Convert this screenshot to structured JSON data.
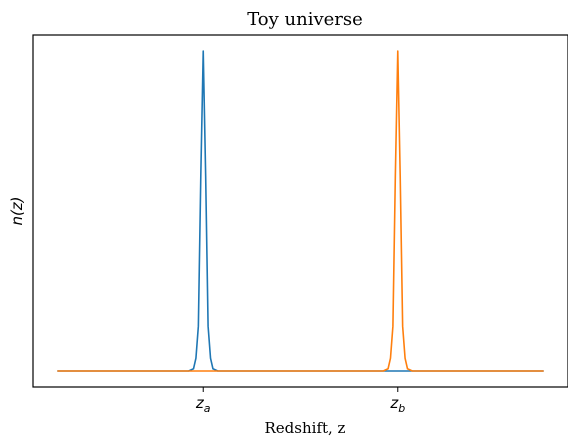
{
  "chart_data": {
    "type": "line",
    "title": "Toy universe",
    "xlabel": "Redshift, z",
    "ylabel": "n(z)",
    "x_ticks": [
      {
        "pos": 0.3,
        "base": "z",
        "sub": "a"
      },
      {
        "pos": 0.7,
        "base": "z",
        "sub": "b"
      }
    ],
    "xlim": [
      -0.05,
      1.05
    ],
    "ylim": [
      -0.05,
      1.05
    ],
    "grid": false,
    "y_ticks_visible": false,
    "x": [
      0.0,
      0.27,
      0.28,
      0.285,
      0.29,
      0.295,
      0.3,
      0.305,
      0.31,
      0.315,
      0.32,
      0.33,
      0.67,
      0.68,
      0.685,
      0.69,
      0.695,
      0.7,
      0.705,
      0.71,
      0.715,
      0.72,
      0.73,
      1.0
    ],
    "series": [
      {
        "color": "#1f77b4",
        "values": [
          0,
          0,
          0.007,
          0.04,
          0.14,
          0.61,
          1.0,
          0.61,
          0.14,
          0.04,
          0.007,
          0,
          0,
          0,
          0,
          0,
          0,
          0,
          0,
          0,
          0,
          0,
          0,
          0
        ]
      },
      {
        "color": "#ff7f0e",
        "values": [
          0,
          0,
          0,
          0,
          0,
          0,
          0,
          0,
          0,
          0,
          0,
          0,
          0,
          0.007,
          0.04,
          0.14,
          0.61,
          1.0,
          0.61,
          0.14,
          0.04,
          0.007,
          0,
          0
        ]
      }
    ]
  }
}
